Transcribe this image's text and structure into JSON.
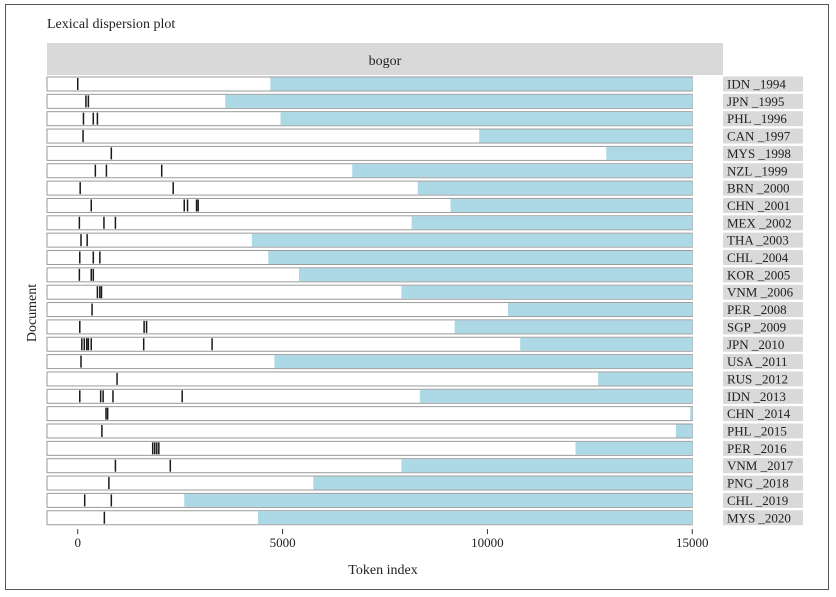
{
  "chart_data": {
    "type": "lexical-dispersion",
    "title": "Lexical dispersion plot",
    "facet": "bogor",
    "xlabel": "Token index",
    "ylabel": "Document",
    "xlim": [
      -750,
      15750
    ],
    "xticks": [
      0,
      5000,
      10000,
      15000
    ],
    "grid": false,
    "colors": {
      "bar_fill": "#add8e6",
      "bar_border": "#9a9a9a",
      "mark": "#1a1a1a",
      "strip": "#d9d9d9",
      "panel_bg": "#ffffff"
    },
    "documents": [
      {
        "name": "IDN _1994",
        "length": 4700,
        "hits": [
          0
        ]
      },
      {
        "name": "JPN _1995",
        "length": 3600,
        "hits": [
          200,
          260
        ]
      },
      {
        "name": "PHL _1996",
        "length": 4950,
        "hits": [
          140,
          380,
          480
        ]
      },
      {
        "name": "CAN _1997",
        "length": 9800,
        "hits": [
          130
        ]
      },
      {
        "name": "MYS _1998",
        "length": 12900,
        "hits": [
          820
        ]
      },
      {
        "name": "NZL _1999",
        "length": 6700,
        "hits": [
          430,
          700,
          2050
        ]
      },
      {
        "name": "BRN _2000",
        "length": 8300,
        "hits": [
          60,
          2330
        ]
      },
      {
        "name": "CHN _2001",
        "length": 9100,
        "hits": [
          330,
          2600,
          2680,
          2900,
          2940
        ]
      },
      {
        "name": "MEX _2002",
        "length": 8150,
        "hits": [
          40,
          640,
          920
        ]
      },
      {
        "name": "THA _2003",
        "length": 4250,
        "hits": [
          80,
          230
        ]
      },
      {
        "name": "CHL _2004",
        "length": 4650,
        "hits": [
          50,
          380,
          540
        ]
      },
      {
        "name": "KOR _2005",
        "length": 5400,
        "hits": [
          40,
          330,
          380
        ]
      },
      {
        "name": "VNM _2006",
        "length": 7900,
        "hits": [
          480,
          540,
          580
        ]
      },
      {
        "name": "PER _2008",
        "length": 10500,
        "hits": [
          350
        ]
      },
      {
        "name": "SGP _2009",
        "length": 9200,
        "hits": [
          50,
          1620,
          1680
        ]
      },
      {
        "name": "JPN _2010",
        "length": 10800,
        "hits": [
          100,
          160,
          220,
          260,
          330,
          1610,
          3280
        ]
      },
      {
        "name": "USA _2011",
        "length": 4800,
        "hits": [
          80
        ]
      },
      {
        "name": "RUS _2012",
        "length": 12700,
        "hits": [
          960
        ]
      },
      {
        "name": "IDN _2013",
        "length": 8350,
        "hits": [
          50,
          560,
          620,
          860,
          2550
        ]
      },
      {
        "name": "CHN _2014",
        "length": 14950,
        "hits": [
          690,
          730
        ]
      },
      {
        "name": "PHL _2015",
        "length": 14600,
        "hits": [
          590
        ]
      },
      {
        "name": "PER _2016",
        "length": 12150,
        "hits": [
          1830,
          1880,
          1930,
          1980
        ]
      },
      {
        "name": "VNM _2017",
        "length": 7900,
        "hits": [
          920,
          2260
        ]
      },
      {
        "name": "PNG _2018",
        "length": 5750,
        "hits": [
          760
        ]
      },
      {
        "name": "CHL _2019",
        "length": 2600,
        "hits": [
          170,
          820
        ]
      },
      {
        "name": "MYS _2020",
        "length": 4400,
        "hits": [
          650
        ]
      }
    ]
  }
}
